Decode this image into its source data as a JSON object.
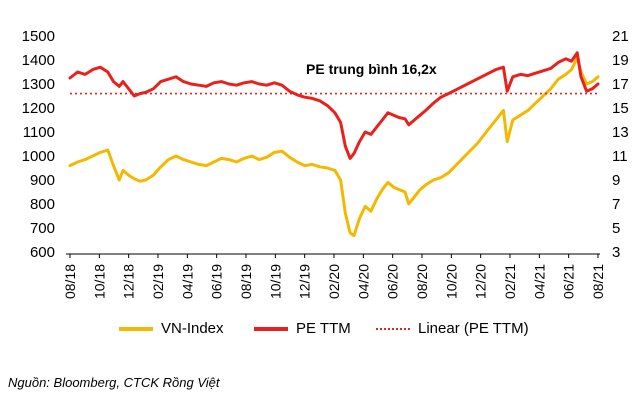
{
  "chart_data": {
    "type": "line",
    "x_tick_labels": [
      "08/18",
      "10/18",
      "12/18",
      "02/19",
      "04/19",
      "06/19",
      "08/19",
      "10/19",
      "12/19",
      "02/20",
      "04/20",
      "06/20",
      "08/20",
      "10/20",
      "12/20",
      "02/21",
      "04/21",
      "06/21",
      "08/21"
    ],
    "left_axis": {
      "ylim": [
        600,
        1500
      ],
      "ticks": [
        600,
        700,
        800,
        900,
        1000,
        1100,
        1200,
        1300,
        1400,
        1500
      ]
    },
    "right_axis": {
      "ylim": [
        3,
        21
      ],
      "ticks": [
        3,
        5,
        7,
        9,
        11,
        13,
        15,
        17,
        19,
        21
      ]
    },
    "series": [
      {
        "name": "VN-Index",
        "axis": "left",
        "color": "#F5B800",
        "points": [
          [
            0,
            960
          ],
          [
            0.4,
            975
          ],
          [
            0.8,
            985
          ],
          [
            1.2,
            1000
          ],
          [
            1.6,
            1015
          ],
          [
            2,
            1025
          ],
          [
            2.3,
            960
          ],
          [
            2.6,
            900
          ],
          [
            2.8,
            940
          ],
          [
            3.1,
            920
          ],
          [
            3.4,
            905
          ],
          [
            3.7,
            895
          ],
          [
            4,
            900
          ],
          [
            4.4,
            920
          ],
          [
            4.8,
            955
          ],
          [
            5.2,
            985
          ],
          [
            5.6,
            1000
          ],
          [
            6,
            985
          ],
          [
            6.4,
            975
          ],
          [
            6.8,
            965
          ],
          [
            7.2,
            960
          ],
          [
            7.6,
            975
          ],
          [
            8,
            990
          ],
          [
            8.4,
            985
          ],
          [
            8.8,
            975
          ],
          [
            9.2,
            990
          ],
          [
            9.6,
            1000
          ],
          [
            10,
            985
          ],
          [
            10.4,
            995
          ],
          [
            10.8,
            1015
          ],
          [
            11.2,
            1020
          ],
          [
            11.6,
            995
          ],
          [
            12,
            975
          ],
          [
            12.4,
            960
          ],
          [
            12.8,
            965
          ],
          [
            13.2,
            955
          ],
          [
            13.6,
            950
          ],
          [
            14,
            940
          ],
          [
            14.3,
            900
          ],
          [
            14.55,
            760
          ],
          [
            14.8,
            680
          ],
          [
            15,
            668
          ],
          [
            15.3,
            740
          ],
          [
            15.6,
            790
          ],
          [
            15.9,
            770
          ],
          [
            16.2,
            820
          ],
          [
            16.5,
            860
          ],
          [
            16.8,
            890
          ],
          [
            17.1,
            870
          ],
          [
            17.4,
            860
          ],
          [
            17.7,
            850
          ],
          [
            17.9,
            800
          ],
          [
            18.2,
            830
          ],
          [
            18.5,
            860
          ],
          [
            18.8,
            880
          ],
          [
            19.2,
            900
          ],
          [
            19.6,
            910
          ],
          [
            20,
            930
          ],
          [
            20.5,
            970
          ],
          [
            21,
            1010
          ],
          [
            21.5,
            1050
          ],
          [
            22,
            1100
          ],
          [
            22.5,
            1150
          ],
          [
            22.9,
            1190
          ],
          [
            23.1,
            1060
          ],
          [
            23.4,
            1150
          ],
          [
            23.8,
            1170
          ],
          [
            24.2,
            1190
          ],
          [
            24.6,
            1220
          ],
          [
            25,
            1250
          ],
          [
            25.4,
            1280
          ],
          [
            25.8,
            1320
          ],
          [
            26.2,
            1340
          ],
          [
            26.5,
            1360
          ],
          [
            26.8,
            1410
          ],
          [
            27,
            1350
          ],
          [
            27.3,
            1300
          ],
          [
            27.6,
            1310
          ],
          [
            27.9,
            1330
          ]
        ]
      },
      {
        "name": "PE TTM",
        "axis": "right",
        "color": "#E8211D",
        "points": [
          [
            0,
            17.5
          ],
          [
            0.4,
            18.0
          ],
          [
            0.8,
            17.8
          ],
          [
            1.2,
            18.2
          ],
          [
            1.6,
            18.4
          ],
          [
            2,
            18.0
          ],
          [
            2.3,
            17.2
          ],
          [
            2.6,
            16.8
          ],
          [
            2.8,
            17.2
          ],
          [
            3.1,
            16.6
          ],
          [
            3.4,
            16.0
          ],
          [
            3.7,
            16.2
          ],
          [
            4,
            16.3
          ],
          [
            4.4,
            16.6
          ],
          [
            4.8,
            17.2
          ],
          [
            5.2,
            17.4
          ],
          [
            5.6,
            17.6
          ],
          [
            6,
            17.2
          ],
          [
            6.4,
            17.0
          ],
          [
            6.8,
            16.9
          ],
          [
            7.2,
            16.8
          ],
          [
            7.6,
            17.1
          ],
          [
            8,
            17.2
          ],
          [
            8.4,
            17.0
          ],
          [
            8.8,
            16.9
          ],
          [
            9.2,
            17.1
          ],
          [
            9.6,
            17.2
          ],
          [
            10,
            17.0
          ],
          [
            10.4,
            16.9
          ],
          [
            10.8,
            17.1
          ],
          [
            11.2,
            16.9
          ],
          [
            11.6,
            16.4
          ],
          [
            12,
            16.1
          ],
          [
            12.4,
            15.9
          ],
          [
            12.8,
            15.8
          ],
          [
            13.2,
            15.6
          ],
          [
            13.6,
            15.2
          ],
          [
            14,
            14.6
          ],
          [
            14.3,
            13.8
          ],
          [
            14.55,
            11.8
          ],
          [
            14.8,
            10.8
          ],
          [
            15,
            11.2
          ],
          [
            15.3,
            12.2
          ],
          [
            15.6,
            13.0
          ],
          [
            15.9,
            12.8
          ],
          [
            16.2,
            13.4
          ],
          [
            16.5,
            14.0
          ],
          [
            16.8,
            14.6
          ],
          [
            17.1,
            14.4
          ],
          [
            17.4,
            14.2
          ],
          [
            17.7,
            14.1
          ],
          [
            17.9,
            13.6
          ],
          [
            18.2,
            14.0
          ],
          [
            18.5,
            14.4
          ],
          [
            18.8,
            14.8
          ],
          [
            19.2,
            15.4
          ],
          [
            19.6,
            15.9
          ],
          [
            20,
            16.2
          ],
          [
            20.5,
            16.6
          ],
          [
            21,
            17.0
          ],
          [
            21.5,
            17.4
          ],
          [
            22,
            17.8
          ],
          [
            22.5,
            18.2
          ],
          [
            22.9,
            18.4
          ],
          [
            23.1,
            16.4
          ],
          [
            23.4,
            17.6
          ],
          [
            23.8,
            17.8
          ],
          [
            24.2,
            17.7
          ],
          [
            24.6,
            17.9
          ],
          [
            25,
            18.1
          ],
          [
            25.4,
            18.3
          ],
          [
            25.8,
            18.8
          ],
          [
            26.2,
            19.1
          ],
          [
            26.5,
            18.9
          ],
          [
            26.8,
            19.6
          ],
          [
            27,
            17.6
          ],
          [
            27.3,
            16.4
          ],
          [
            27.6,
            16.6
          ],
          [
            27.9,
            17.0
          ]
        ]
      },
      {
        "name": "Linear (PE TTM)",
        "axis": "right",
        "color": "#E8211D",
        "style": "dotted",
        "points": [
          [
            0,
            16.2
          ],
          [
            27.9,
            16.2
          ]
        ]
      }
    ],
    "annotation": "PE trung bình 16,2x",
    "legend": [
      "VN-Index",
      "PE TTM",
      "Linear (PE TTM)"
    ]
  },
  "legend": {
    "vnindex": "VN-Index",
    "pe": "PE TTM",
    "linear": "Linear (PE TTM)"
  },
  "source": "Nguồn: Bloomberg, CTCK Rồng Việt",
  "colors": {
    "vnindex": "#F5B800",
    "pe": "#E8211D"
  }
}
